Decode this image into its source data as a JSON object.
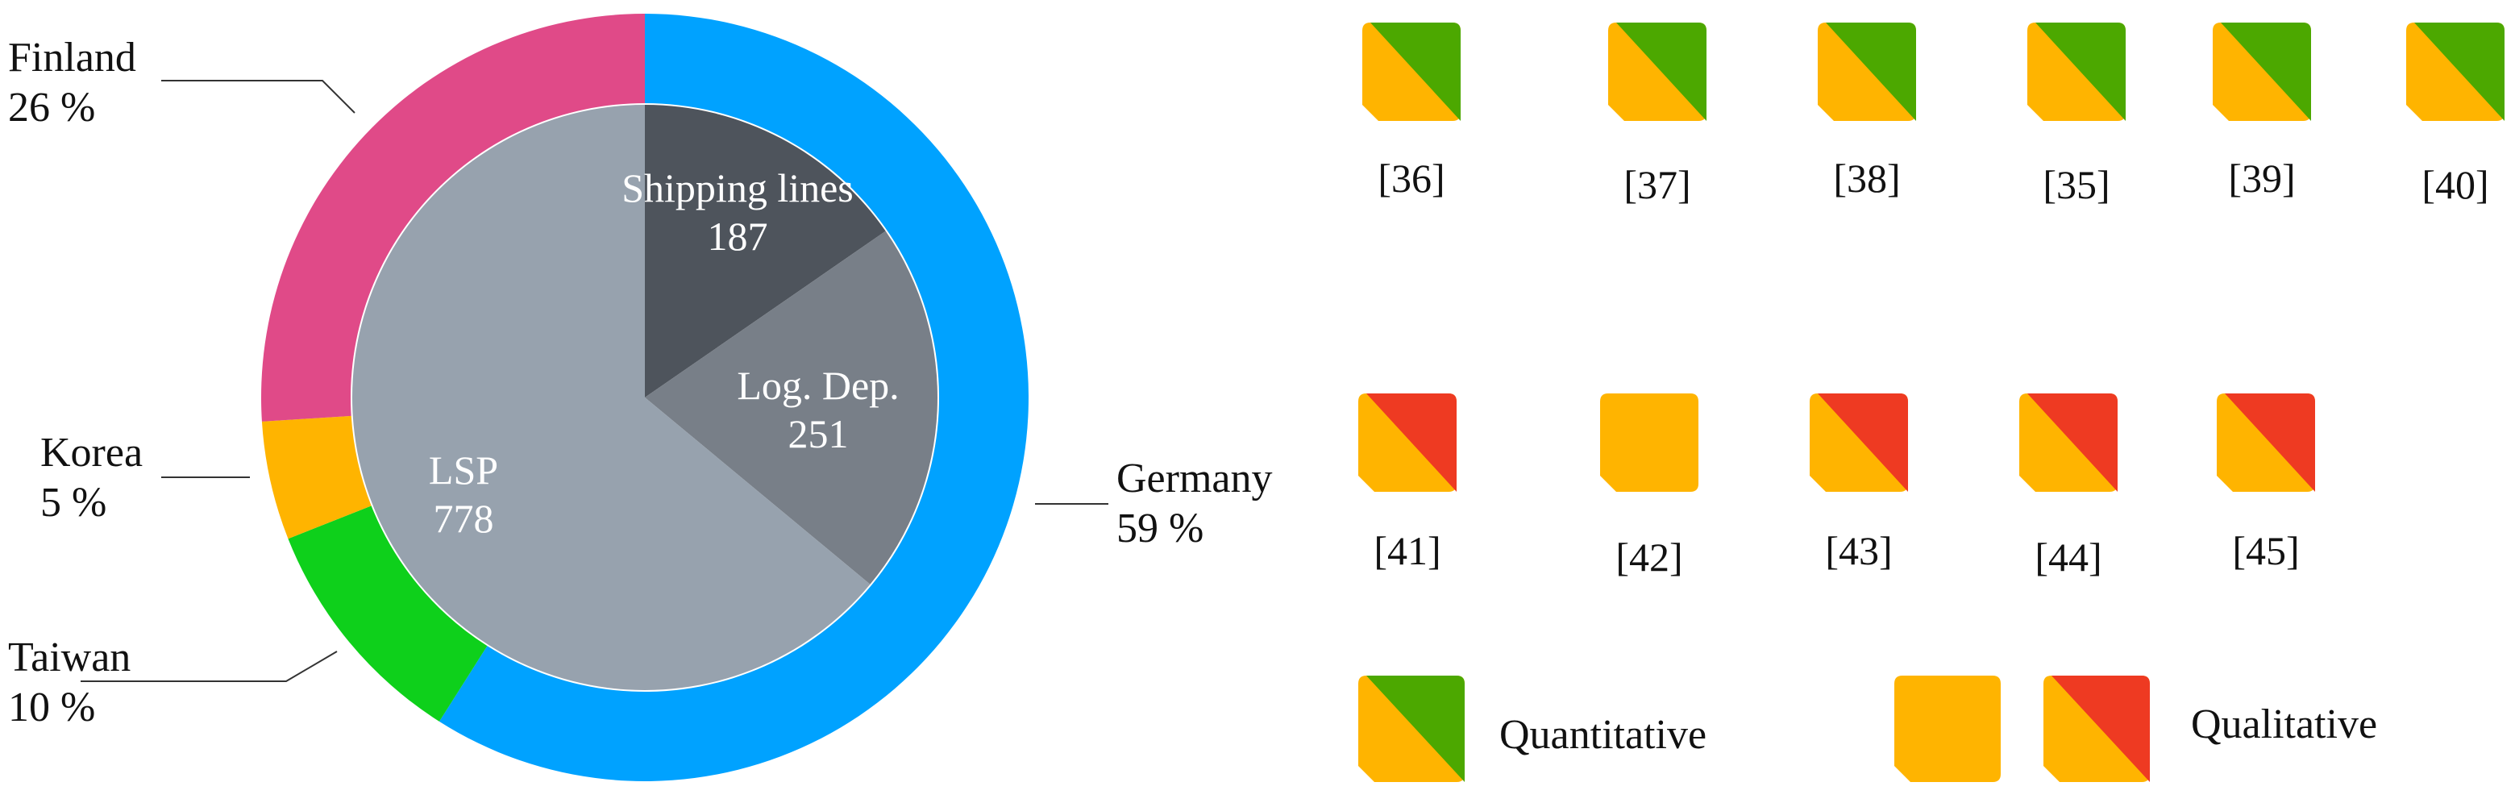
{
  "chart_data": [
    {
      "type": "pie",
      "role": "inner",
      "slices": [
        {
          "label": "Shipping lines",
          "value": 187,
          "color": "#4e545c"
        },
        {
          "label": "Log. Dep.",
          "value": 251,
          "color": "#787f88"
        },
        {
          "label": "LSP",
          "value": 778,
          "color": "#97a2ae"
        }
      ]
    },
    {
      "type": "pie",
      "role": "outer-ring",
      "slices": [
        {
          "label": "Germany",
          "value": 59,
          "display": "59 %",
          "color": "#00a2ff"
        },
        {
          "label": "Taiwan",
          "value": 10,
          "display": "10 %",
          "color": "#0ed01b"
        },
        {
          "label": "Korea",
          "value": 5,
          "display": "5 %",
          "color": "#ffb400"
        },
        {
          "label": "Finland",
          "value": 26,
          "display": "26 %",
          "color": "#e04a88"
        }
      ]
    },
    {
      "type": "table",
      "rows": [
        [
          {
            "ref": "[36]",
            "kind": "quantitative"
          },
          {
            "ref": "[37]",
            "kind": "quantitative"
          },
          {
            "ref": "[38]",
            "kind": "quantitative"
          },
          {
            "ref": "[35]",
            "kind": "quantitative"
          },
          {
            "ref": "[39]",
            "kind": "quantitative"
          },
          {
            "ref": "[40]",
            "kind": "quantitative"
          }
        ],
        [
          {
            "ref": "[41]",
            "kind": "qualitative"
          },
          {
            "ref": "[42]",
            "kind": "qualitative-plain"
          },
          {
            "ref": "[43]",
            "kind": "qualitative"
          },
          {
            "ref": "[44]",
            "kind": "qualitative"
          },
          {
            "ref": "[45]",
            "kind": "qualitative"
          }
        ]
      ],
      "legend": [
        {
          "label": "Quantitative",
          "icons": [
            "quantitative"
          ]
        },
        {
          "label": "Qualitative",
          "icons": [
            "qualitative-plain",
            "qualitative"
          ]
        }
      ]
    }
  ],
  "colors": {
    "orange": "#ffb400",
    "green": "#4ca800",
    "red": "#ee3a22",
    "text": "#111111"
  }
}
